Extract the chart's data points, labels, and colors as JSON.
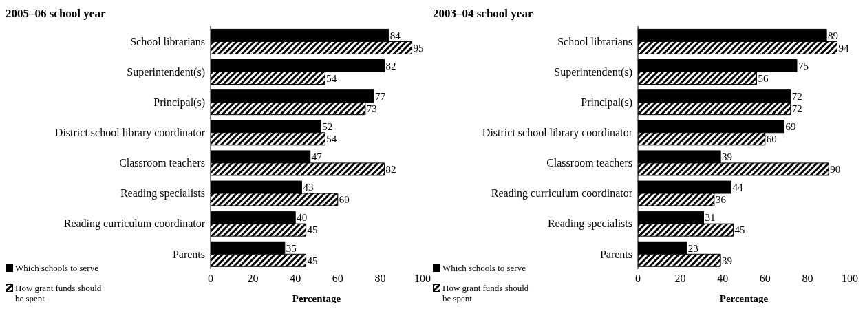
{
  "chart_data": [
    {
      "type": "bar",
      "orientation": "horizontal",
      "title": "2005–06 school year",
      "xlabel": "Percentage",
      "categories": [
        "School librarians",
        "Superintendent(s)",
        "Principal(s)",
        "District school library coordinator",
        "Classroom teachers",
        "Reading specialists",
        "Reading curriculum coordinator",
        "Parents"
      ],
      "series": [
        {
          "name": "Which schools to serve",
          "color": "#000000",
          "values": [
            84,
            82,
            77,
            52,
            47,
            43,
            40,
            35
          ]
        },
        {
          "name": "How grant funds should be spent",
          "color": "#000000",
          "values": [
            95,
            54,
            73,
            54,
            82,
            60,
            45,
            45
          ]
        }
      ],
      "xlim": [
        0,
        100
      ],
      "xticks": [
        0,
        20,
        40,
        60,
        80,
        100
      ],
      "data_labels": true,
      "legend": "bottom left"
    },
    {
      "type": "bar",
      "orientation": "horizontal",
      "title": "2003–04 school year",
      "xlabel": "Percentage",
      "categories": [
        "School librarians",
        "Superintendent(s)",
        "Principal(s)",
        "District school library coordinator",
        "Classroom teachers",
        "Reading curriculum coordinator",
        "Reading specialists",
        "Parents"
      ],
      "series": [
        {
          "name": "Which schools to serve",
          "color": "#000000",
          "values": [
            89,
            75,
            72,
            69,
            39,
            44,
            31,
            23
          ]
        },
        {
          "name": "How grant funds should be spent",
          "color": "#000000",
          "values": [
            94,
            56,
            72,
            60,
            90,
            36,
            45,
            39
          ]
        }
      ],
      "xlim": [
        0,
        100
      ],
      "xticks": [
        0,
        20,
        40,
        60,
        80,
        100
      ],
      "data_labels": true,
      "legend": "bottom left"
    }
  ]
}
